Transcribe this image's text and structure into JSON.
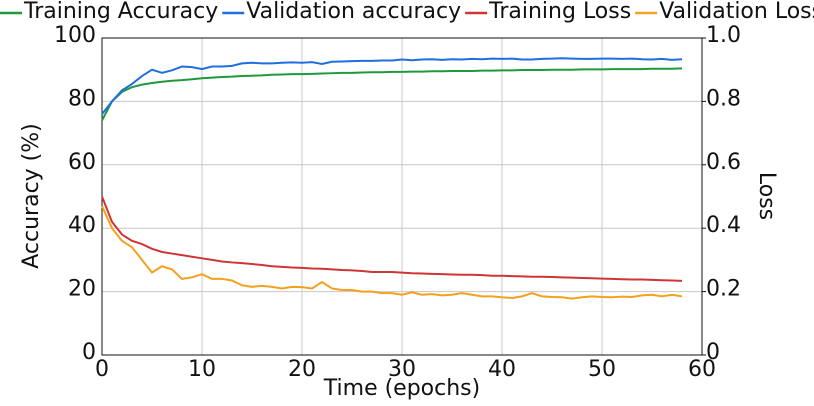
{
  "chart_data": {
    "type": "line",
    "xlabel": "Time (epochs)",
    "ylabel": "Accuracy (%)",
    "y2label": "Loss",
    "x": [
      0,
      1,
      2,
      3,
      4,
      5,
      6,
      7,
      8,
      9,
      10,
      11,
      12,
      13,
      14,
      15,
      16,
      17,
      18,
      19,
      20,
      21,
      22,
      23,
      24,
      25,
      26,
      27,
      28,
      29,
      30,
      31,
      32,
      33,
      34,
      35,
      36,
      37,
      38,
      39,
      40,
      41,
      42,
      43,
      44,
      45,
      46,
      47,
      48,
      49,
      50,
      51,
      52,
      53,
      54,
      55,
      56,
      57,
      58
    ],
    "xlim": [
      0,
      60
    ],
    "xticks": [
      0,
      10,
      20,
      30,
      40,
      50,
      60
    ],
    "ylim": [
      0,
      100
    ],
    "yticks": [
      0,
      20,
      40,
      60,
      80,
      100
    ],
    "y2lim": [
      0,
      1
    ],
    "y2ticks": [
      0,
      0.2,
      0.4,
      0.6,
      0.8,
      {
        "value": 1,
        "label": "1.0"
      }
    ],
    "grid": true,
    "legend": "top",
    "series": [
      {
        "name": "Training Accuracy",
        "color": "#1e9a3c",
        "values": [
          74,
          80,
          83,
          84.5,
          85.3,
          85.8,
          86.2,
          86.5,
          86.7,
          87,
          87.3,
          87.5,
          87.7,
          87.8,
          88,
          88.1,
          88.2,
          88.4,
          88.5,
          88.6,
          88.6,
          88.7,
          88.8,
          88.9,
          89,
          89,
          89.1,
          89.2,
          89.2,
          89.3,
          89.3,
          89.4,
          89.4,
          89.5,
          89.5,
          89.6,
          89.6,
          89.6,
          89.7,
          89.7,
          89.8,
          89.8,
          89.9,
          89.9,
          89.9,
          90,
          90,
          90,
          90.1,
          90.1,
          90.1,
          90.2,
          90.2,
          90.2,
          90.2,
          90.3,
          90.3,
          90.3,
          90.4
        ]
      },
      {
        "name": "Validation accuracy",
        "color": "#1f6fe0",
        "values": [
          76,
          80,
          83.5,
          85.5,
          88,
          90,
          89,
          89.8,
          91,
          90.8,
          90.2,
          91,
          91,
          91.2,
          92,
          92.2,
          92,
          92,
          92.2,
          92.3,
          92.2,
          92.4,
          91.8,
          92.5,
          92.6,
          92.7,
          92.8,
          92.8,
          92.9,
          92.9,
          93.2,
          93,
          93.2,
          93.3,
          93.1,
          93.3,
          93.2,
          93.4,
          93.3,
          93.5,
          93.4,
          93.5,
          93.2,
          93.2,
          93.4,
          93.5,
          93.6,
          93.5,
          93.4,
          93.4,
          93.5,
          93.5,
          93.4,
          93.5,
          93.3,
          93.2,
          93.4,
          93.1,
          93.3
        ]
      },
      {
        "name": "Training Loss",
        "color": "#d03535",
        "axis": "y2",
        "values": [
          0.5,
          0.42,
          0.38,
          0.36,
          0.35,
          0.335,
          0.325,
          0.32,
          0.315,
          0.31,
          0.305,
          0.3,
          0.295,
          0.292,
          0.29,
          0.287,
          0.284,
          0.28,
          0.278,
          0.276,
          0.275,
          0.273,
          0.272,
          0.27,
          0.268,
          0.267,
          0.265,
          0.262,
          0.262,
          0.262,
          0.26,
          0.258,
          0.257,
          0.256,
          0.255,
          0.254,
          0.253,
          0.253,
          0.252,
          0.25,
          0.25,
          0.249,
          0.248,
          0.247,
          0.247,
          0.246,
          0.245,
          0.244,
          0.243,
          0.242,
          0.241,
          0.24,
          0.239,
          0.238,
          0.238,
          0.237,
          0.236,
          0.235,
          0.234
        ]
      },
      {
        "name": "Validation Loss",
        "color": "#f5a01e",
        "axis": "y2",
        "values": [
          0.47,
          0.4,
          0.36,
          0.34,
          0.3,
          0.26,
          0.28,
          0.27,
          0.24,
          0.245,
          0.255,
          0.24,
          0.24,
          0.235,
          0.22,
          0.215,
          0.218,
          0.215,
          0.21,
          0.215,
          0.214,
          0.21,
          0.23,
          0.21,
          0.205,
          0.205,
          0.2,
          0.2,
          0.195,
          0.195,
          0.19,
          0.198,
          0.19,
          0.192,
          0.188,
          0.19,
          0.195,
          0.19,
          0.185,
          0.185,
          0.182,
          0.18,
          0.185,
          0.195,
          0.185,
          0.183,
          0.182,
          0.178,
          0.182,
          0.185,
          0.183,
          0.182,
          0.184,
          0.183,
          0.188,
          0.19,
          0.185,
          0.19,
          0.185
        ]
      }
    ]
  }
}
